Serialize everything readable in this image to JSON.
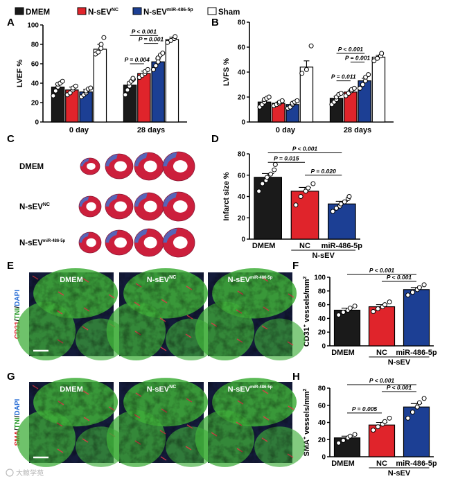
{
  "legend": {
    "items": [
      {
        "label": "DMEM",
        "sup": "",
        "color": "#1a1a1a"
      },
      {
        "label": "N-sEV",
        "sup": "NC",
        "color": "#e0242b"
      },
      {
        "label": "N-sEV",
        "sup": "miR-486-5p",
        "color": "#1c3f94"
      },
      {
        "label": "Sham",
        "sup": "",
        "color": "#ffffff"
      }
    ]
  },
  "panels": {
    "A": "A",
    "B": "B",
    "C": "C",
    "D": "D",
    "E": "E",
    "F": "F",
    "G": "G",
    "H": "H"
  },
  "panel_c": {
    "rows": [
      {
        "label": "DMEM",
        "sup": ""
      },
      {
        "label": "N-sEV",
        "sup": "NC"
      },
      {
        "label": "N-sEV",
        "sup": "miR-486-5p"
      }
    ]
  },
  "panel_e": {
    "stain": [
      "CD31",
      "/",
      "TNI",
      "/",
      "DAPI"
    ],
    "stain_colors": [
      "#e0242b",
      "#000000",
      "#2a9a2a",
      "#000000",
      "#2b6fd6"
    ],
    "images": [
      {
        "label": "DMEM",
        "sup": ""
      },
      {
        "label": "N-sEV",
        "sup": "NC"
      },
      {
        "label": "N-sEV",
        "sup": "miR-486-5p"
      }
    ]
  },
  "panel_g": {
    "stain": [
      "SMA",
      "/",
      "TNI",
      "/",
      "DAPI"
    ],
    "stain_colors": [
      "#e0242b",
      "#000000",
      "#2a9a2a",
      "#000000",
      "#2b6fd6"
    ],
    "images": [
      {
        "label": "DMEM",
        "sup": ""
      },
      {
        "label": "N-sEV",
        "sup": "NC"
      },
      {
        "label": "N-sEV",
        "sup": "miR-486-5p"
      }
    ]
  },
  "watermark": "大鲸学苑",
  "chart_data": [
    {
      "id": "A",
      "type": "bar",
      "ylabel": "LVEF %",
      "ylim": [
        0,
        100
      ],
      "yticks": [
        0,
        20,
        40,
        60,
        80,
        100
      ],
      "categories": [
        "0 day",
        "28 days"
      ],
      "series": [
        {
          "name": "DMEM",
          "values": [
            36,
            38
          ],
          "errors": [
            3,
            2.5
          ]
        },
        {
          "name": "N-sEVNC",
          "values": [
            33,
            50
          ],
          "errors": [
            3,
            2.5
          ]
        },
        {
          "name": "N-sEVmiR-486-5p",
          "values": [
            31,
            62
          ],
          "errors": [
            2.5,
            3
          ]
        },
        {
          "name": "Sham",
          "values": [
            75,
            85
          ],
          "errors": [
            5,
            2.5
          ]
        }
      ],
      "points": [
        [
          [
            27,
            32,
            36,
            39,
            40,
            42
          ],
          [
            28,
            33,
            37,
            40,
            42,
            44,
            45
          ]
        ],
        [
          [
            28,
            30,
            33,
            35,
            37
          ],
          [
            46,
            48,
            50,
            52,
            54
          ]
        ],
        [
          [
            26,
            28,
            30,
            32,
            34,
            35
          ],
          [
            54,
            58,
            62,
            66,
            69,
            71
          ]
        ],
        [
          [
            70,
            72,
            76,
            80,
            87
          ],
          [
            82,
            84,
            86,
            88
          ]
        ]
      ],
      "annotations": [
        {
          "text": "P = 0.004",
          "from": [
            1,
            0
          ],
          "to": [
            1,
            1
          ],
          "y": 60
        },
        {
          "text": "P = 0.001",
          "from": [
            1,
            1
          ],
          "to": [
            1,
            2
          ],
          "y": 81
        },
        {
          "text": "P < 0.001",
          "from": [
            1,
            0
          ],
          "to": [
            1,
            2
          ],
          "y": 89
        }
      ]
    },
    {
      "id": "B",
      "type": "bar",
      "ylabel": "LVFS %",
      "ylim": [
        0,
        80
      ],
      "yticks": [
        0,
        20,
        40,
        60,
        80
      ],
      "categories": [
        "0 day",
        "28 days"
      ],
      "series": [
        {
          "name": "DMEM",
          "values": [
            16,
            19
          ],
          "errors": [
            1.5,
            1.5
          ]
        },
        {
          "name": "N-sEVNC",
          "values": [
            15,
            24
          ],
          "errors": [
            1,
            1.5
          ]
        },
        {
          "name": "N-sEVmiR-486-5p",
          "values": [
            14,
            33
          ],
          "errors": [
            1,
            2
          ]
        },
        {
          "name": "Sham",
          "values": [
            44,
            52
          ],
          "errors": [
            5,
            1.5
          ]
        }
      ],
      "points": [
        [
          [
            12,
            14,
            16,
            18,
            19,
            20
          ],
          [
            14,
            16,
            18,
            20,
            22,
            23
          ]
        ],
        [
          [
            13,
            14,
            15,
            16,
            17
          ],
          [
            21,
            23,
            25,
            26,
            27
          ]
        ],
        [
          [
            11,
            12,
            14,
            15,
            16,
            17
          ],
          [
            27,
            30,
            33,
            36,
            38
          ]
        ],
        [
          [
            39,
            42,
            61
          ],
          [
            49,
            51,
            53,
            55
          ]
        ]
      ],
      "annotations": [
        {
          "text": "P = 0.011",
          "from": [
            1,
            0
          ],
          "to": [
            1,
            1
          ],
          "y": 33
        },
        {
          "text": "P = 0.001",
          "from": [
            1,
            1
          ],
          "to": [
            1,
            2
          ],
          "y": 48
        },
        {
          "text": "P < 0.001",
          "from": [
            1,
            0
          ],
          "to": [
            1,
            2
          ],
          "y": 55
        }
      ]
    },
    {
      "id": "D",
      "type": "bar",
      "ylabel": "Infarct size %",
      "ylim": [
        0,
        80
      ],
      "yticks": [
        0,
        20,
        40,
        60,
        80
      ],
      "categories": [
        "DMEM",
        "NC",
        "miR-486-5p"
      ],
      "group_label": "N-sEV",
      "colors": [
        "#1a1a1a",
        "#e0242b",
        "#1c3f94"
      ],
      "values": [
        58,
        45,
        33
      ],
      "errors": [
        3.5,
        3.5,
        2.5
      ],
      "points": [
        [
          45,
          52,
          55,
          58,
          61,
          65,
          70
        ],
        [
          32,
          40,
          45,
          48,
          52
        ],
        [
          26,
          29,
          31,
          33,
          35,
          38,
          40
        ]
      ],
      "annotations": [
        {
          "text": "P = 0.015",
          "from": 0,
          "to": 1,
          "y": 72
        },
        {
          "text": "P = 0.020",
          "from": 1,
          "to": 2,
          "y": 60
        },
        {
          "text": "P < 0.001",
          "from": 0,
          "to": 2,
          "y": 81
        }
      ]
    },
    {
      "id": "F",
      "type": "bar",
      "ylabel": "CD31+ vessels/mm2",
      "ylabel_parts": [
        "CD31",
        "+",
        " vessels/mm",
        "2"
      ],
      "ylim": [
        0,
        100
      ],
      "yticks": [
        0,
        20,
        40,
        60,
        80,
        100
      ],
      "categories": [
        "DMEM",
        "NC",
        "miR-486-5p"
      ],
      "group_label": "N-sEV",
      "colors": [
        "#1a1a1a",
        "#e0242b",
        "#1c3f94"
      ],
      "values": [
        52,
        57,
        82
      ],
      "errors": [
        3,
        3,
        3
      ],
      "points": [
        [
          45,
          49,
          52,
          55,
          58
        ],
        [
          50,
          54,
          57,
          60,
          64
        ],
        [
          74,
          78,
          82,
          85,
          89
        ]
      ],
      "annotations": [
        {
          "text": "P < 0.001",
          "from": 1,
          "to": 2,
          "y": 94
        },
        {
          "text": "P < 0.001",
          "from": 0,
          "to": 2,
          "y": 104
        }
      ]
    },
    {
      "id": "H",
      "type": "bar",
      "ylabel": "SMA+ vessels/mm2",
      "ylabel_parts": [
        "SMA",
        "+",
        " vessels/mm",
        "2"
      ],
      "ylim": [
        0,
        80
      ],
      "yticks": [
        0,
        20,
        40,
        60,
        80
      ],
      "categories": [
        "DMEM",
        "NC",
        "miR-486-5p"
      ],
      "group_label": "N-sEV",
      "colors": [
        "#1a1a1a",
        "#e0242b",
        "#1c3f94"
      ],
      "values": [
        22,
        37,
        58
      ],
      "errors": [
        2,
        3,
        4
      ],
      "points": [
        [
          16,
          19,
          22,
          24,
          26
        ],
        [
          31,
          35,
          38,
          41,
          45
        ],
        [
          45,
          52,
          58,
          63,
          68
        ]
      ],
      "annotations": [
        {
          "text": "P = 0.005",
          "from": 0,
          "to": 1,
          "y": 51
        },
        {
          "text": "P < 0.001",
          "from": 1,
          "to": 2,
          "y": 76
        },
        {
          "text": "P < 0.001",
          "from": 0,
          "to": 2,
          "y": 84
        }
      ]
    }
  ]
}
